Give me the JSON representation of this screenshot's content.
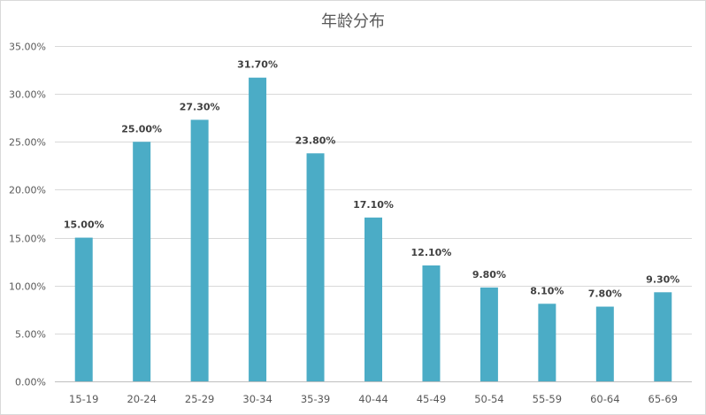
{
  "chart_data": {
    "type": "bar",
    "title": "年龄分布",
    "xlabel": "",
    "ylabel": "",
    "categories": [
      "15-19",
      "20-24",
      "25-29",
      "30-34",
      "35-39",
      "40-44",
      "45-49",
      "50-54",
      "55-59",
      "60-64",
      "65-69"
    ],
    "values": [
      15.0,
      25.0,
      27.3,
      31.7,
      23.8,
      17.1,
      12.1,
      9.8,
      8.1,
      7.8,
      9.3
    ],
    "data_labels": [
      "15.00%",
      "25.00%",
      "27.30%",
      "31.70%",
      "23.80%",
      "17.10%",
      "12.10%",
      "9.80%",
      "8.10%",
      "7.80%",
      "9.30%"
    ],
    "ylim": [
      0,
      35
    ],
    "yticks": [
      "0.00%",
      "5.00%",
      "10.00%",
      "15.00%",
      "20.00%",
      "25.00%",
      "30.00%",
      "35.00%"
    ],
    "grid": true,
    "legend": "none",
    "bar_color": "#4BACC6"
  }
}
